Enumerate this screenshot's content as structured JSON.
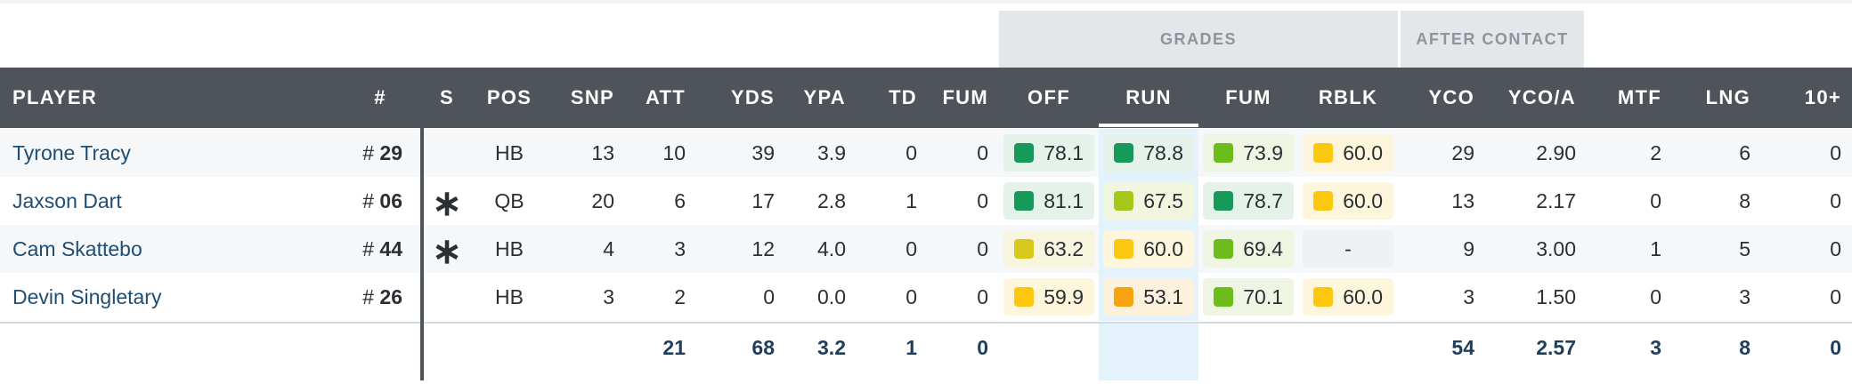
{
  "groups": {
    "grades": "GRADES",
    "after_contact": "AFTER CONTACT"
  },
  "columns": {
    "player": "PLAYER",
    "num": "#",
    "s": "S",
    "pos": "POS",
    "snp": "SNP",
    "att": "ATT",
    "yds": "YDS",
    "ypa": "YPA",
    "td": "TD",
    "fum": "FUM",
    "off": "OFF",
    "run": "RUN",
    "gfum": "FUM",
    "rblk": "RBLK",
    "yco": "YCO",
    "yco_a": "YCO/A",
    "mtf": "MTF",
    "lng": "LNG",
    "ten": "10+"
  },
  "rows": [
    {
      "player": "Tyrone Tracy",
      "num": "29",
      "s": "",
      "pos": "HB",
      "snp": "13",
      "att": "10",
      "yds": "39",
      "ypa": "3.9",
      "td": "0",
      "fum": "0",
      "off": "78.1",
      "run": "78.8",
      "gfum": "73.9",
      "rblk": "60.0",
      "yco": "29",
      "yco_a": "2.90",
      "mtf": "2",
      "lng": "6",
      "ten": "0"
    },
    {
      "player": "Jaxson Dart",
      "num": "06",
      "s": "∗",
      "pos": "QB",
      "snp": "20",
      "att": "6",
      "yds": "17",
      "ypa": "2.8",
      "td": "1",
      "fum": "0",
      "off": "81.1",
      "run": "67.5",
      "gfum": "78.7",
      "rblk": "60.0",
      "yco": "13",
      "yco_a": "2.17",
      "mtf": "0",
      "lng": "8",
      "ten": "0"
    },
    {
      "player": "Cam Skattebo",
      "num": "44",
      "s": "∗",
      "pos": "HB",
      "snp": "4",
      "att": "3",
      "yds": "12",
      "ypa": "4.0",
      "td": "0",
      "fum": "0",
      "off": "63.2",
      "run": "60.0",
      "gfum": "69.4",
      "rblk": "-",
      "yco": "9",
      "yco_a": "3.00",
      "mtf": "1",
      "lng": "5",
      "ten": "0"
    },
    {
      "player": "Devin Singletary",
      "num": "26",
      "s": "",
      "pos": "HB",
      "snp": "3",
      "att": "2",
      "yds": "0",
      "ypa": "0.0",
      "td": "0",
      "fum": "0",
      "off": "59.9",
      "run": "53.1",
      "gfum": "70.1",
      "rblk": "60.0",
      "yco": "3",
      "yco_a": "1.50",
      "mtf": "0",
      "lng": "3",
      "ten": "0"
    }
  ],
  "totals": {
    "att": "21",
    "yds": "68",
    "ypa": "3.2",
    "td": "1",
    "fum": "0",
    "yco": "54",
    "yco_a": "2.57",
    "mtf": "3",
    "lng": "8",
    "ten": "0"
  },
  "grade_colors": {
    "dark_green": {
      "square": "#17995a",
      "bg": "#e4f2ea"
    },
    "green": {
      "square": "#6cbd1c",
      "bg": "#eef5e2"
    },
    "lime": {
      "square": "#a6c81a",
      "bg": "#f3f6df"
    },
    "olive_yellow": {
      "square": "#d9c81c",
      "bg": "#f7f5de"
    },
    "yellow": {
      "square": "#fbc70f",
      "bg": "#fdf6dd"
    },
    "orange": {
      "square": "#f7a311",
      "bg": "#fcf1dc"
    },
    "run_col_bg": "#e3f2fb"
  },
  "row_grade_tones": [
    [
      "dark_green",
      "dark_green",
      "green",
      "yellow"
    ],
    [
      "dark_green",
      "lime",
      "dark_green",
      "yellow"
    ],
    [
      "olive_yellow",
      "yellow",
      "green",
      null
    ],
    [
      "yellow",
      "orange",
      "green",
      "yellow"
    ]
  ]
}
